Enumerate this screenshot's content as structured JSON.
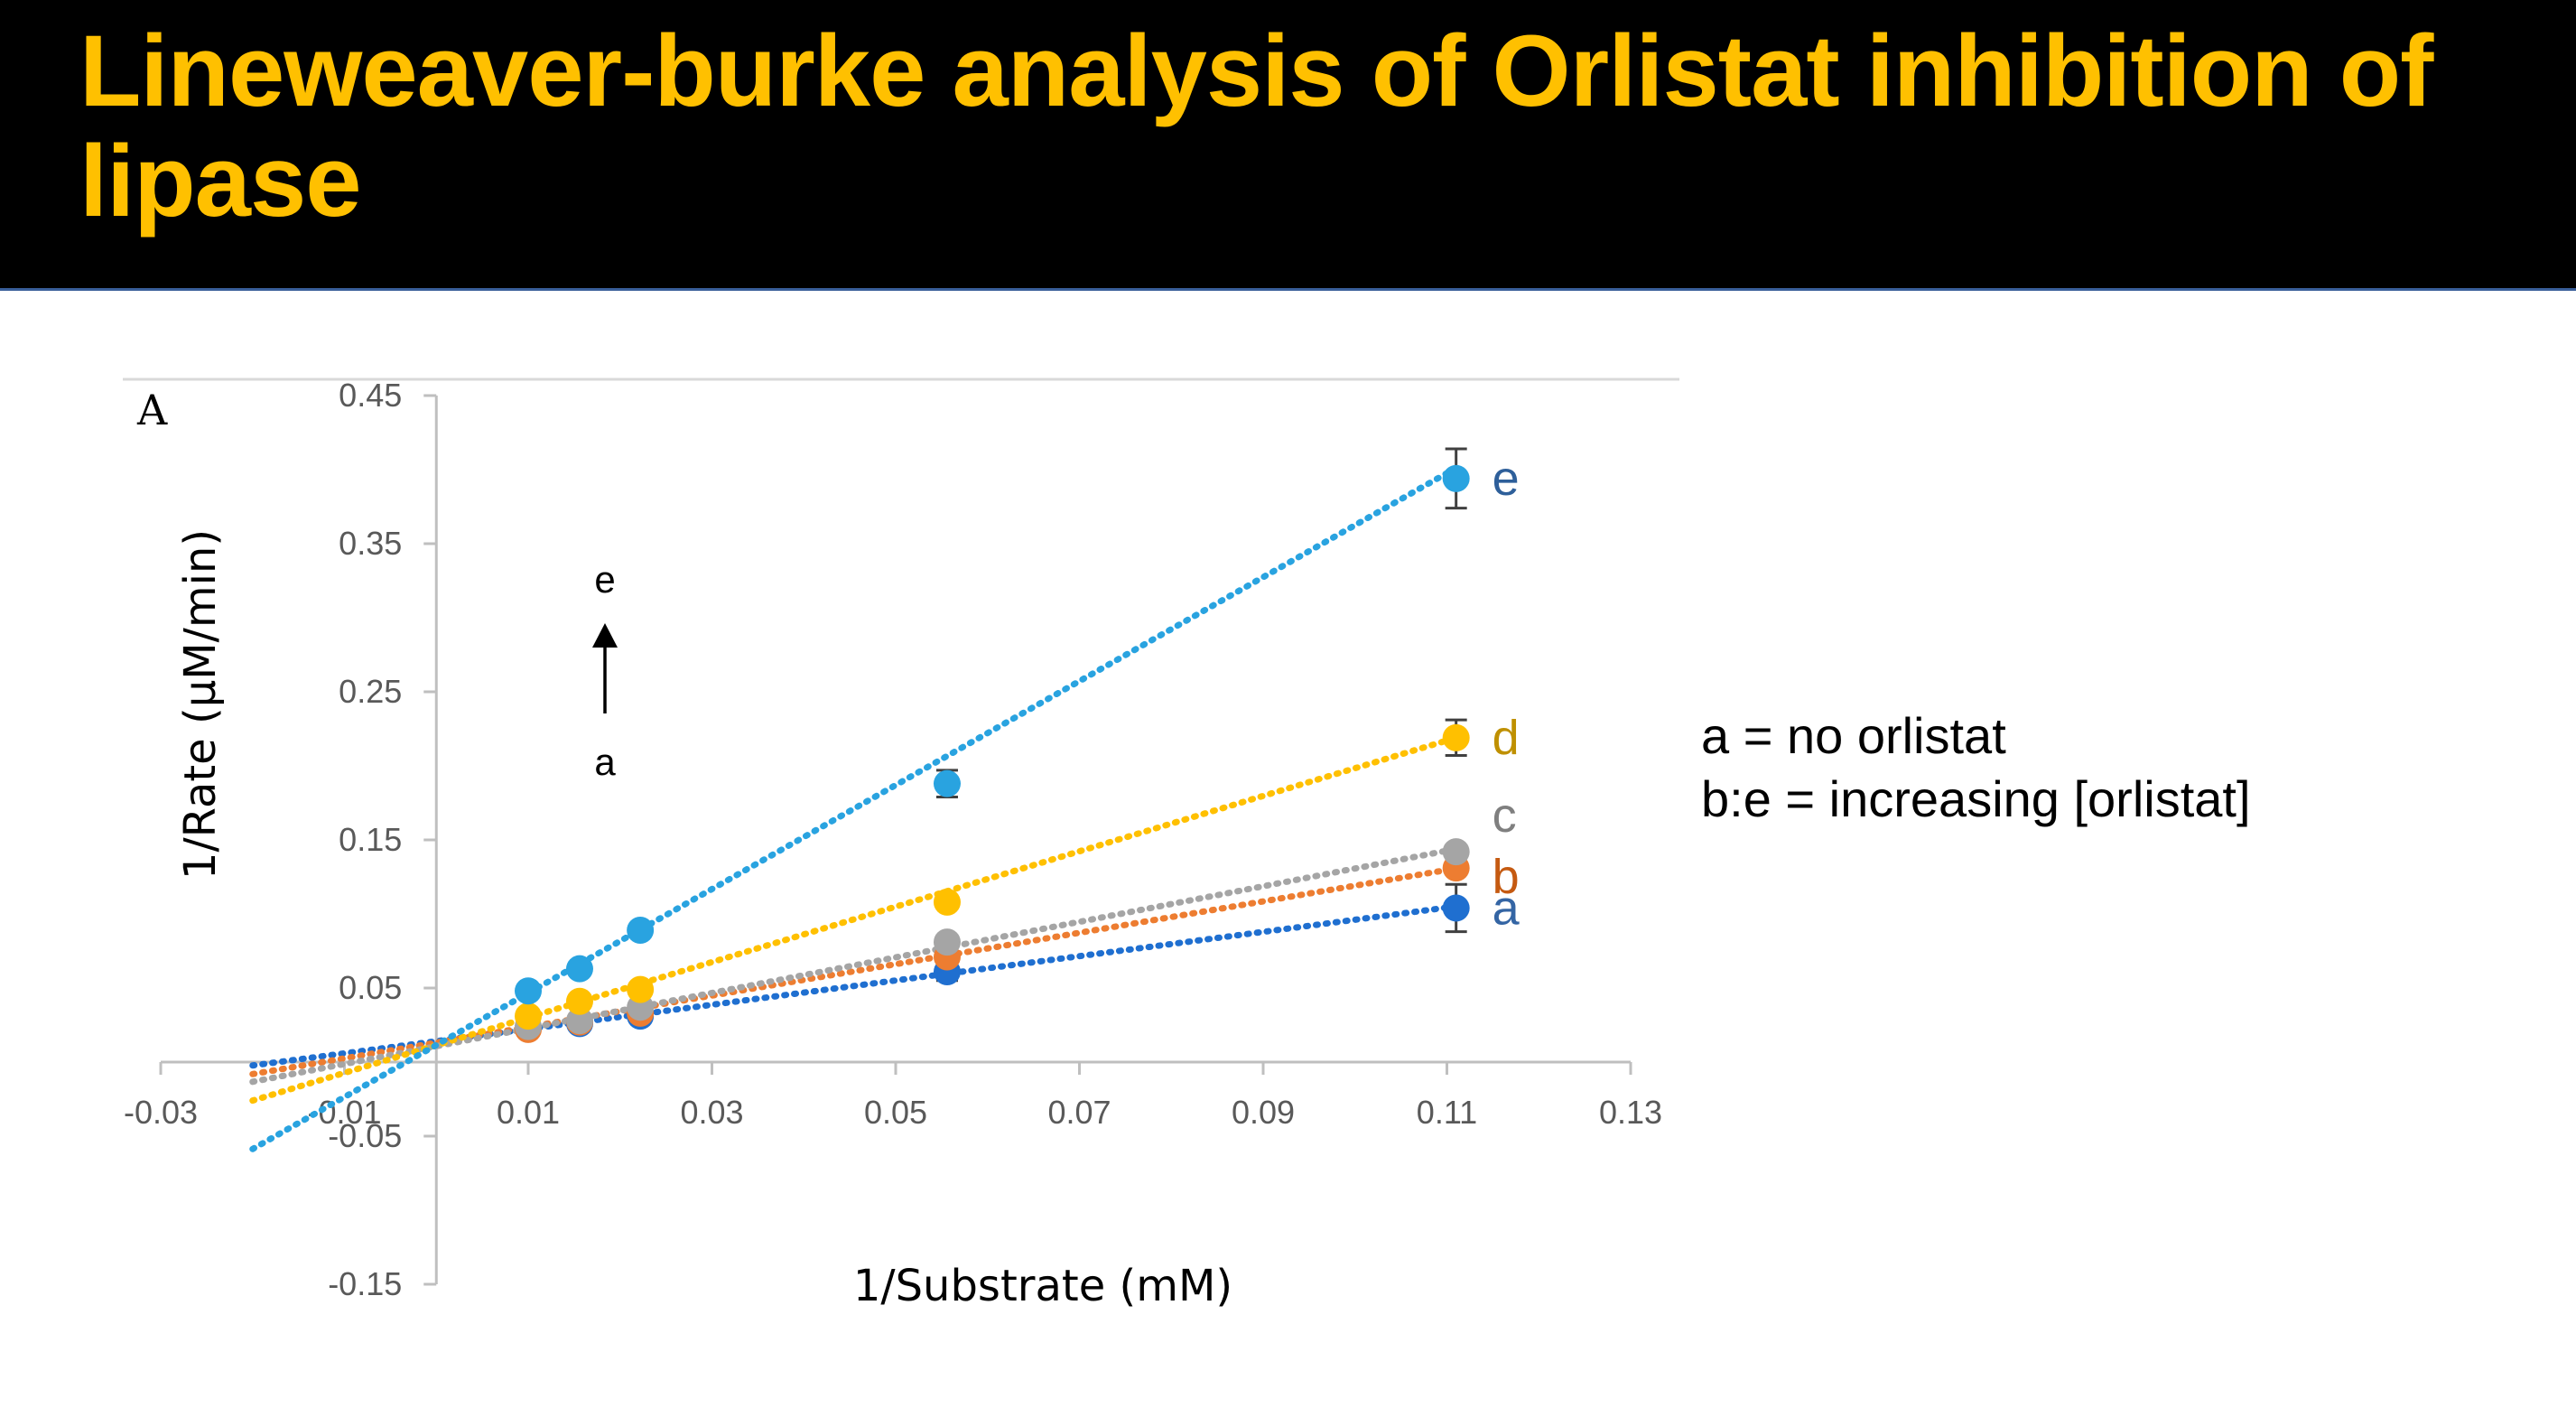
{
  "slide": {
    "title": "Lineweaver-burke analysis of Orlistat inhibition of lipase",
    "notes": [
      "a = no orlistat",
      "b:e = increasing [orlistat]"
    ]
  },
  "colors": {
    "title_bg": "#000000",
    "title_text": "#ffc000",
    "a": "#1f6fd0",
    "b": "#ed7d31",
    "c": "#a5a5a5",
    "d": "#ffc000",
    "e": "#29a3e0",
    "label_a": "#3465a4",
    "label_b": "#c55a11",
    "label_c": "#7f7f7f",
    "label_d": "#bf9000",
    "label_e": "#2e5f9a"
  },
  "chart_data": {
    "type": "scatter",
    "panel_label": "A",
    "xlabel": "1/Substrate (mM)",
    "ylabel": "1/Rate (μM/min)",
    "xlim": [
      -0.03,
      0.13
    ],
    "ylim": [
      -0.15,
      0.45
    ],
    "x_ticks": [
      "-0.03",
      "-0.01",
      "0.01",
      "0.03",
      "0.05",
      "0.07",
      "0.09",
      "0.11",
      "0.13"
    ],
    "y_ticks": [
      "0.45",
      "0.35",
      "0.25",
      "0.15",
      "0.05",
      "-0.05",
      "-0.15"
    ],
    "trendline_x_range": [
      -0.02,
      0.111
    ],
    "arrow_annotation": {
      "top": "e",
      "bottom": "a"
    },
    "series": [
      {
        "name": "a",
        "x": [
          0.01,
          0.0156,
          0.0222,
          0.0556,
          0.111
        ],
        "y": [
          0.023,
          0.026,
          0.031,
          0.061,
          0.104
        ],
        "error": [
          0,
          0,
          0,
          0.006,
          0.016
        ],
        "fit": {
          "slope": 0.82,
          "intercept": 0.0141
        }
      },
      {
        "name": "b",
        "x": [
          0.01,
          0.0156,
          0.0222,
          0.0556,
          0.111
        ],
        "y": [
          0.022,
          0.027,
          0.033,
          0.071,
          0.131
        ],
        "error": [
          0,
          0,
          0,
          0,
          0
        ],
        "fit": {
          "slope": 1.06,
          "intercept": 0.0131
        }
      },
      {
        "name": "c",
        "x": [
          0.01,
          0.0156,
          0.0222,
          0.0556,
          0.111
        ],
        "y": [
          0.024,
          0.028,
          0.037,
          0.081,
          0.142
        ],
        "error": [
          0,
          0,
          0,
          0,
          0
        ],
        "fit": {
          "slope": 1.2,
          "intercept": 0.0107
        }
      },
      {
        "name": "d",
        "x": [
          0.01,
          0.0156,
          0.0222,
          0.0556,
          0.111
        ],
        "y": [
          0.031,
          0.041,
          0.049,
          0.108,
          0.219
        ],
        "error": [
          0,
          0,
          0,
          0,
          0.012
        ],
        "fit": {
          "slope": 1.87,
          "intercept": 0.0114
        }
      },
      {
        "name": "e",
        "x": [
          0.01,
          0.0156,
          0.0222,
          0.0556,
          0.111
        ],
        "y": [
          0.048,
          0.063,
          0.089,
          0.188,
          0.394
        ],
        "error": [
          0,
          0,
          0,
          0.009,
          0.02
        ],
        "fit": {
          "slope": 3.51,
          "intercept": 0.0115
        }
      }
    ]
  }
}
